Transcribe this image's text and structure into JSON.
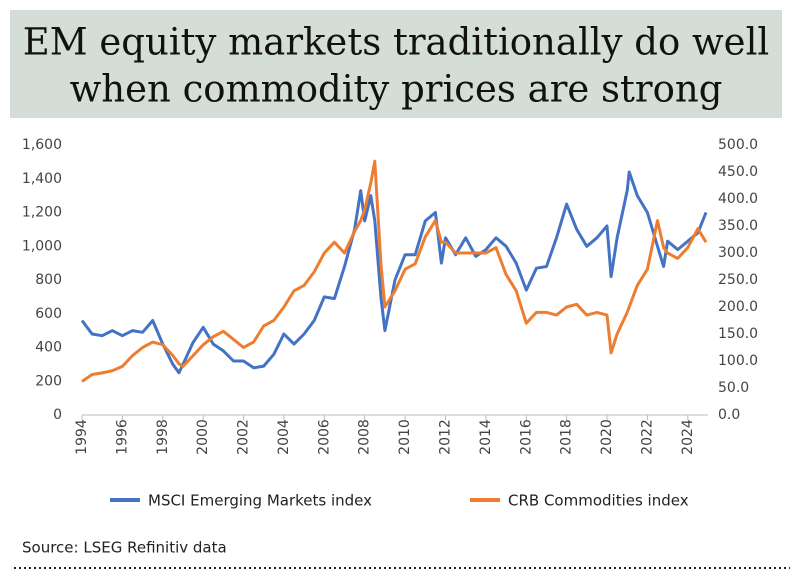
{
  "chart_data": {
    "type": "line",
    "title": [
      "EM equity markets traditionally do well",
      "when commodity prices are strong"
    ],
    "source": "Source: LSEG Refinitiv data",
    "x": [
      1994,
      1994.5,
      1995,
      1995.5,
      1996,
      1996.5,
      1997,
      1997.5,
      1998,
      1998.5,
      1998.8,
      1999,
      1999.5,
      2000,
      2000.5,
      2001,
      2001.5,
      2002,
      2002.5,
      2003,
      2003.5,
      2004,
      2004.5,
      2005,
      2005.5,
      2006,
      2006.5,
      2007,
      2007.5,
      2007.8,
      2008,
      2008.3,
      2008.5,
      2008.8,
      2009,
      2009.5,
      2010,
      2010.5,
      2011,
      2011.5,
      2011.8,
      2012,
      2012.5,
      2013,
      2013.5,
      2014,
      2014.5,
      2015,
      2015.5,
      2016,
      2016.5,
      2017,
      2017.5,
      2018,
      2018.5,
      2019,
      2019.5,
      2020,
      2020.2,
      2020.5,
      2021,
      2021.1,
      2021.5,
      2022,
      2022.5,
      2022.8,
      2023,
      2023.5,
      2024,
      2024.5,
      2024.9
    ],
    "series": [
      {
        "name": "MSCI Emerging Markets index",
        "color": "#4472c4",
        "axis": "y",
        "values": [
          560,
          480,
          470,
          500,
          470,
          500,
          490,
          560,
          420,
          300,
          250,
          300,
          430,
          520,
          420,
          380,
          320,
          320,
          280,
          290,
          360,
          480,
          420,
          480,
          560,
          700,
          690,
          880,
          1100,
          1330,
          1150,
          1300,
          1150,
          700,
          500,
          800,
          950,
          950,
          1150,
          1200,
          900,
          1050,
          950,
          1050,
          940,
          980,
          1050,
          1000,
          900,
          740,
          870,
          880,
          1050,
          1250,
          1100,
          1000,
          1050,
          1120,
          820,
          1050,
          1330,
          1440,
          1300,
          1200,
          1000,
          880,
          1030,
          980,
          1030,
          1080,
          1200
        ]
      },
      {
        "name": "CRB Commodities index",
        "color": "#ed7d31",
        "axis": "y2",
        "values": [
          62,
          75,
          78,
          82,
          90,
          110,
          125,
          135,
          130,
          110,
          95,
          90,
          110,
          130,
          145,
          155,
          140,
          125,
          135,
          165,
          175,
          200,
          230,
          240,
          265,
          300,
          320,
          300,
          340,
          360,
          380,
          430,
          470,
          280,
          200,
          230,
          270,
          280,
          330,
          360,
          320,
          320,
          300,
          300,
          300,
          300,
          310,
          260,
          230,
          170,
          190,
          190,
          185,
          200,
          205,
          185,
          190,
          185,
          115,
          150,
          190,
          200,
          240,
          270,
          360,
          310,
          300,
          290,
          310,
          345,
          320
        ]
      }
    ],
    "xlim": [
      1994,
      2025
    ],
    "xticks": [
      1994,
      1996,
      1998,
      2000,
      2002,
      2004,
      2006,
      2008,
      2010,
      2012,
      2014,
      2016,
      2018,
      2020,
      2022,
      2024
    ],
    "ylim": [
      0,
      1600
    ],
    "yticks": [
      0,
      200,
      400,
      600,
      800,
      {
        "value": 1000,
        "label": "1,000"
      },
      {
        "value": 1200,
        "label": "1,200"
      },
      {
        "value": 1400,
        "label": "1,400"
      },
      {
        "value": 1600,
        "label": "1,600"
      }
    ],
    "y2lim": [
      0,
      500
    ],
    "y2ticks": [
      {
        "value": 0,
        "label": "0.0"
      },
      {
        "value": 50,
        "label": "50.0"
      },
      {
        "value": 100,
        "label": "100.0"
      },
      {
        "value": 150,
        "label": "150.0"
      },
      {
        "value": 200,
        "label": "200.0"
      },
      {
        "value": 250,
        "label": "250.0"
      },
      {
        "value": 300,
        "label": "300.0"
      },
      {
        "value": 350,
        "label": "350.0"
      },
      {
        "value": 400,
        "label": "400.0"
      },
      {
        "value": 450,
        "label": "450.0"
      },
      {
        "value": 500,
        "label": "500.0"
      }
    ],
    "legend": "bottom"
  }
}
